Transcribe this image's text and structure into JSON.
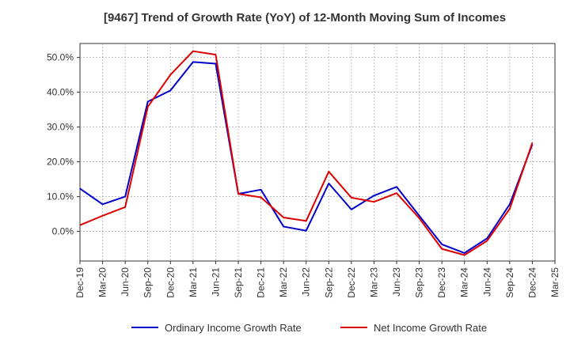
{
  "chart_data": {
    "type": "line",
    "title": "[9467]  Trend of Growth Rate (YoY) of 12-Month Moving Sum of Incomes",
    "x": [
      "Dec-19",
      "Mar-20",
      "Jun-20",
      "Sep-20",
      "Dec-20",
      "Mar-21",
      "Jun-21",
      "Sep-21",
      "Dec-21",
      "Mar-22",
      "Jun-22",
      "Sep-22",
      "Dec-22",
      "Mar-23",
      "Jun-23",
      "Sep-23",
      "Dec-23",
      "Mar-24",
      "Jun-24",
      "Sep-24",
      "Dec-24",
      "Mar-25"
    ],
    "x_tick_labels": [
      "Dec-19",
      "Mar-20",
      "Jun-20",
      "Sep-20",
      "Dec-20",
      "Mar-21",
      "Jun-21",
      "Sep-21",
      "Dec-21",
      "Mar-22",
      "Jun-22",
      "Sep-22",
      "Dec-22",
      "Mar-23",
      "Jun-23",
      "Sep-23",
      "Dec-23",
      "Mar-24",
      "Jun-24",
      "Sep-24",
      "Dec-24",
      "Mar-25"
    ],
    "y_ticks": [
      0,
      10,
      20,
      30,
      40,
      50
    ],
    "y_tick_labels": [
      "0.0%",
      "10.0%",
      "20.0%",
      "30.0%",
      "40.0%",
      "50.0%"
    ],
    "ylim": [
      -8.5,
      54
    ],
    "xlabel": "",
    "ylabel": "",
    "grid": true,
    "legend_position": "bottom",
    "series": [
      {
        "name": "Ordinary Income Growth Rate",
        "color": "#0000cc",
        "values": [
          12.3,
          7.8,
          10.0,
          37.3,
          40.5,
          48.7,
          48.2,
          10.8,
          12.0,
          1.4,
          0.2,
          13.8,
          6.3,
          10.3,
          12.8,
          4.5,
          -3.7,
          -6.2,
          -2.0,
          7.8,
          25.0,
          null
        ]
      },
      {
        "name": "Net Income Growth Rate",
        "color": "#dd0000",
        "values": [
          1.8,
          4.5,
          7.0,
          35.8,
          45.0,
          51.8,
          50.8,
          10.8,
          9.8,
          4.0,
          3.0,
          17.2,
          9.7,
          8.5,
          11.0,
          3.8,
          -5.0,
          -6.8,
          -2.7,
          6.5,
          25.5,
          null
        ]
      }
    ]
  }
}
